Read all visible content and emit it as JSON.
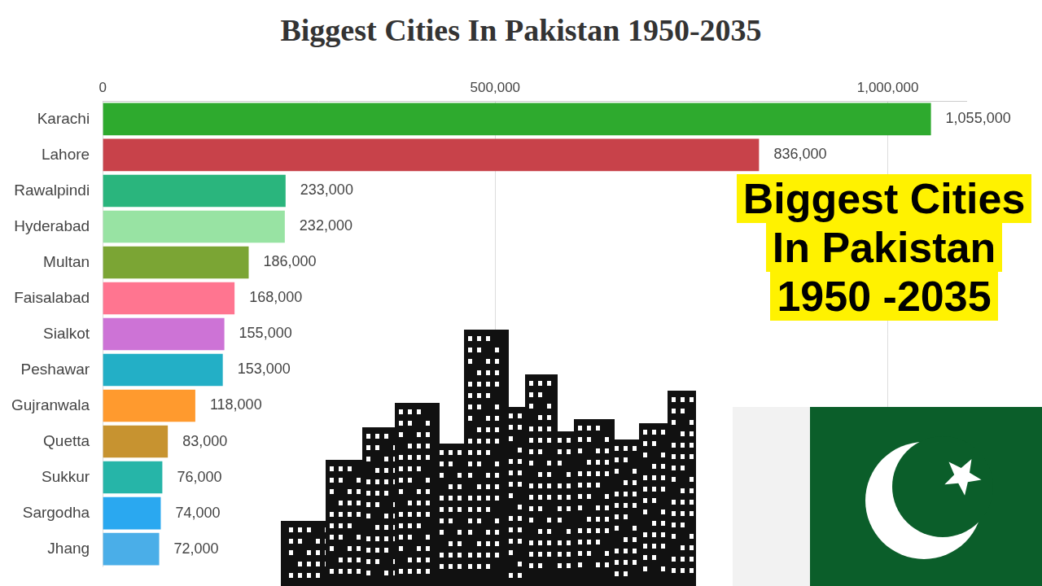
{
  "chart_data": {
    "type": "bar",
    "title": "Biggest Cities In Pakistan 1950-2035",
    "orientation": "horizontal",
    "categories": [
      "Karachi",
      "Lahore",
      "Rawalpindi",
      "Hyderabad",
      "Multan",
      "Faisalabad",
      "Sialkot",
      "Peshawar",
      "Gujranwala",
      "Quetta",
      "Sukkur",
      "Sargodha",
      "Jhang"
    ],
    "values": [
      1055000,
      836000,
      233000,
      232000,
      186000,
      168000,
      155000,
      153000,
      118000,
      83000,
      76000,
      74000,
      72000
    ],
    "value_labels": [
      "1,055,000",
      "836,000",
      "233,000",
      "232,000",
      "186,000",
      "168,000",
      "155,000",
      "153,000",
      "118,000",
      "83,000",
      "76,000",
      "74,000",
      "72,000"
    ],
    "colors": [
      "#2eaa2e",
      "#c8424a",
      "#2ab57d",
      "#98e3a3",
      "#7ba534",
      "#ff7590",
      "#cd73d6",
      "#23afc6",
      "#ff9a2e",
      "#c79330",
      "#26b5a8",
      "#2aa8f0",
      "#4aaee8"
    ],
    "xlim": [
      0,
      1100000
    ],
    "xticks": [
      0,
      {
        "value": 500000,
        "label": "500,000"
      },
      {
        "value": 1000000,
        "label": "1,000,000"
      }
    ],
    "grid": true,
    "data_labels": true,
    "annotations": [
      "Biggest Cities",
      "In Pakistan",
      "1950 -2035"
    ]
  }
}
